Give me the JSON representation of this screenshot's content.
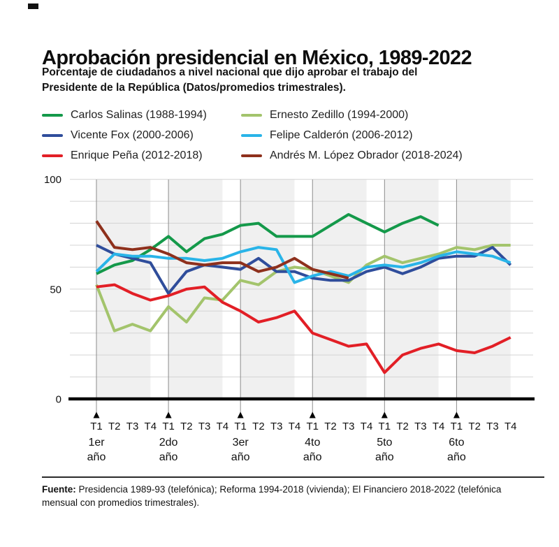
{
  "header": {
    "title": "Aprobación presidencial en México, 1989-2022",
    "subtitle_line1": "Porcentaje de ciudadanos a nivel nacional que dijo aprobar el trabajo del",
    "subtitle_line2": "Presidente de la República (Datos/promedios trimestrales)."
  },
  "footer": {
    "label": "Fuente:",
    "text": "Presidencia 1989-93 (telefónica); Reforma 1994-2018 (vivienda); El Financiero 2018-2022 (telefónica mensual con promedios trimestrales)."
  },
  "chart_data": {
    "type": "line",
    "title": "Aprobación presidencial en México, 1989-2022",
    "ylabel": "",
    "xlabel": "",
    "ylim": [
      0,
      100
    ],
    "ytick_labels": [
      "100",
      "50",
      "0"
    ],
    "ytick_values": [
      100,
      50,
      0
    ],
    "gridline_step": 10,
    "grid": true,
    "legend_position": "top",
    "quarter_labels": [
      "T1",
      "T2",
      "T3",
      "T4",
      "T1",
      "T2",
      "T3",
      "T4",
      "T1",
      "T2",
      "T3",
      "T4",
      "T1",
      "T2",
      "T3",
      "T4",
      "T1",
      "T2",
      "T3",
      "T4",
      "T1",
      "T2",
      "T3",
      "T4"
    ],
    "year_ordinals": [
      "1er",
      "2do",
      "3er",
      "4to",
      "5to",
      "6to"
    ],
    "year_word": "año",
    "band_color": "#f0f0f0",
    "gridline_color": "#d4d4d4",
    "yearline_color": "#8c8c8c",
    "axis_color": "#000000",
    "series": [
      {
        "name": "Carlos Salinas (1988-1994)",
        "color": "#14994a",
        "values": [
          57,
          61,
          63,
          68,
          74,
          67,
          73,
          75,
          79,
          80,
          74,
          74,
          74,
          79,
          84,
          80,
          76,
          80,
          83,
          79,
          null,
          null,
          null,
          null
        ]
      },
      {
        "name": "Ernesto Zedillo (1994-2000)",
        "color": "#a3c46c",
        "values": [
          52,
          31,
          34,
          31,
          42,
          35,
          46,
          45,
          54,
          52,
          58,
          60,
          59,
          56,
          53,
          61,
          65,
          62,
          64,
          66,
          69,
          68,
          70,
          70
        ]
      },
      {
        "name": "Vicente Fox (2000-2006)",
        "color": "#2f4d9b",
        "values": [
          70,
          66,
          64,
          62,
          48,
          58,
          61,
          60,
          59,
          64,
          58,
          58,
          55,
          54,
          54,
          58,
          60,
          57,
          60,
          64,
          65,
          65,
          69,
          61
        ]
      },
      {
        "name": "Felipe Calderón (2006-2012)",
        "color": "#29b4e8",
        "values": [
          58,
          66,
          65,
          65,
          64,
          64,
          63,
          64,
          67,
          69,
          68,
          53,
          56,
          58,
          56,
          60,
          61,
          60,
          62,
          65,
          67,
          66,
          65,
          62
        ]
      },
      {
        "name": "Enrique Peña (2012-2018)",
        "color": "#e21f26",
        "values": [
          51,
          52,
          48,
          45,
          47,
          50,
          51,
          44,
          40,
          35,
          37,
          40,
          30,
          27,
          24,
          25,
          12,
          20,
          23,
          25,
          22,
          21,
          24,
          28
        ]
      },
      {
        "name": "Andrés M. López Obrador (2018-2024)",
        "color": "#8e301c",
        "values": [
          81,
          69,
          68,
          69,
          66,
          62,
          61,
          62,
          62,
          58,
          60,
          64,
          59,
          57,
          55,
          null,
          null,
          null,
          null,
          null,
          null,
          null,
          null,
          null
        ]
      }
    ]
  }
}
